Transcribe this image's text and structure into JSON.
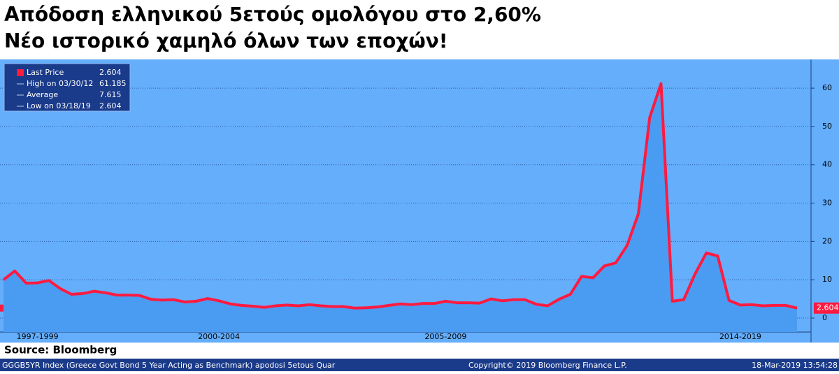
{
  "chart_data": {
    "type": "area-line",
    "title": "Απόδοση ελληνικού 5ετούς ομολόγου στο 2,60%",
    "subtitle": "Νέο ιστορικό χαμηλό όλων των εποχών!",
    "categories": [
      null,
      null,
      null,
      "1997-1999",
      null,
      null,
      null,
      null,
      null,
      null,
      null,
      null,
      null,
      null,
      null,
      null,
      null,
      null,
      null,
      "2000-2004",
      null,
      null,
      null,
      null,
      null,
      null,
      null,
      null,
      null,
      null,
      null,
      null,
      null,
      null,
      null,
      null,
      null,
      null,
      null,
      "2005-2009",
      null,
      null,
      null,
      null,
      null,
      null,
      null,
      null,
      null,
      null,
      null,
      null,
      null,
      null,
      null,
      null,
      null,
      null,
      null,
      null,
      null,
      null,
      null,
      null,
      null,
      "2014-2019",
      null,
      null,
      null,
      null,
      null
    ],
    "series": [
      {
        "name": "Last Price",
        "color": "#ff1a40",
        "values": [
          10.0,
          12.3,
          9.1,
          9.2,
          9.8,
          7.7,
          6.2,
          6.4,
          7.0,
          6.6,
          6.0,
          6.0,
          5.9,
          4.9,
          4.7,
          4.8,
          4.2,
          4.4,
          5.1,
          4.5,
          3.7,
          3.3,
          3.1,
          2.8,
          3.2,
          3.4,
          3.2,
          3.5,
          3.2,
          3.0,
          3.0,
          2.6,
          2.7,
          2.9,
          3.3,
          3.7,
          3.5,
          3.8,
          3.8,
          4.4,
          4.0,
          4.0,
          3.9,
          5.0,
          4.5,
          4.8,
          4.8,
          3.6,
          3.2,
          4.9,
          6.2,
          10.9,
          10.5,
          13.6,
          14.4,
          18.9,
          27.2,
          52.3,
          61.185,
          4.4,
          4.8,
          11.5,
          17.0,
          16.2,
          4.6,
          3.4,
          3.5,
          3.2,
          3.3,
          3.3,
          2.604
        ]
      }
    ],
    "legend": [
      {
        "label": "Last Price",
        "value": 2.604
      },
      {
        "label": "High on 03/30/12",
        "value": 61.185
      },
      {
        "label": "Average",
        "value": 7.615
      },
      {
        "label": "Low on 03/18/19",
        "value": 2.604
      }
    ],
    "ylim": [
      -3.65,
      67.5
    ],
    "yticks": [
      0,
      10,
      20,
      30,
      40,
      50,
      60
    ],
    "grid": true,
    "source": "Source: Bloomberg",
    "footer": [
      "GGGB5YR Index (Greece Govt Bond 5 Year Acting as Benchmark) apodosi 5etous  Quar",
      "Copyright© 2019 Bloomberg Finance L.P.",
      "18-Mar-2019 13:54:28"
    ]
  }
}
